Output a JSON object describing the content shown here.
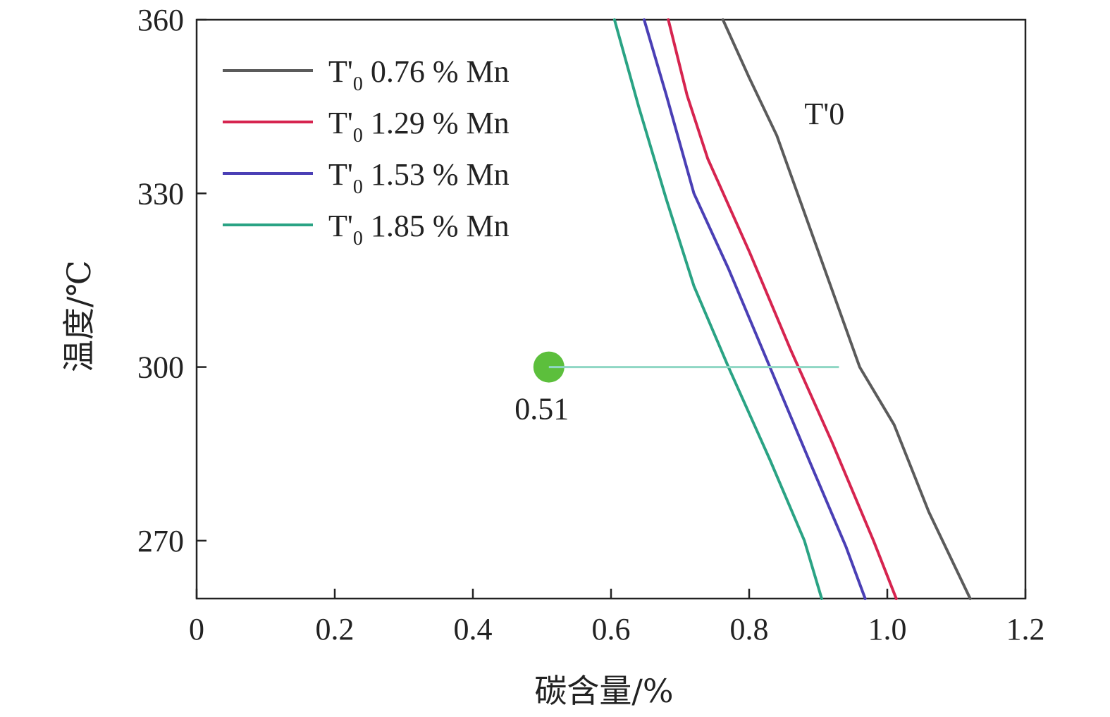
{
  "chart_data": {
    "type": "line",
    "title": "",
    "xlabel": "碳含量/%",
    "ylabel": "温度/℃",
    "xlim": [
      0,
      1.2
    ],
    "ylim": [
      260,
      360
    ],
    "xticks": [
      0,
      0.2,
      0.4,
      0.6,
      0.8,
      1.0,
      1.2
    ],
    "xtick_labels": [
      "0",
      "0.2",
      "0.4",
      "0.6",
      "0.8",
      "1.0",
      "1.2"
    ],
    "yticks": [
      270,
      300,
      330,
      360
    ],
    "ytick_labels": [
      "270",
      "300",
      "330",
      "360"
    ],
    "grid": false,
    "legend_position": "top-left",
    "series": [
      {
        "name": "T'0 0.76 % Mn",
        "legend_main": "T'",
        "legend_sub": "0",
        "legend_rest": " 0.76 % Mn",
        "color": "#5b5b5b",
        "x": [
          0.762,
          0.8,
          0.84,
          0.9,
          0.96,
          1.01,
          1.06,
          1.12
        ],
        "y": [
          360,
          350,
          340,
          320,
          300,
          290,
          275,
          260
        ]
      },
      {
        "name": "T'0 1.29 % Mn",
        "legend_main": "T'",
        "legend_sub": "0",
        "legend_rest": " 1.29 % Mn",
        "color": "#d6244f",
        "x": [
          0.683,
          0.71,
          0.74,
          0.8,
          0.86,
          0.92,
          0.98,
          1.013
        ],
        "y": [
          360,
          347,
          336,
          320,
          303,
          287,
          270,
          260
        ]
      },
      {
        "name": "T'0 1.53 % Mn",
        "legend_main": "T'",
        "legend_sub": "0",
        "legend_rest": " 1.53 % Mn",
        "color": "#4a3fb5",
        "x": [
          0.648,
          0.68,
          0.72,
          0.77,
          0.83,
          0.89,
          0.94,
          0.968
        ],
        "y": [
          360,
          347,
          330,
          317,
          300,
          283,
          269,
          260
        ]
      },
      {
        "name": "T'0 1.85 % Mn",
        "legend_main": "T'",
        "legend_sub": "0",
        "legend_rest": " 1.85 % Mn",
        "color": "#2aa384",
        "x": [
          0.605,
          0.64,
          0.68,
          0.72,
          0.77,
          0.83,
          0.88,
          0.905
        ],
        "y": [
          360,
          345,
          329,
          314,
          300,
          284,
          270,
          260
        ]
      }
    ],
    "annotations": [
      {
        "text": "T'0",
        "x": 0.88,
        "y": 342
      },
      {
        "text": "0.51",
        "x": 0.495,
        "y": 293
      }
    ],
    "marker_point": {
      "x": 0.51,
      "y": 300,
      "color": "#5cbf3c"
    },
    "reference_line": {
      "x": [
        0.51,
        0.93
      ],
      "y": [
        300,
        300
      ],
      "color": "#8fd7c4"
    },
    "axis_color": "#222222"
  }
}
